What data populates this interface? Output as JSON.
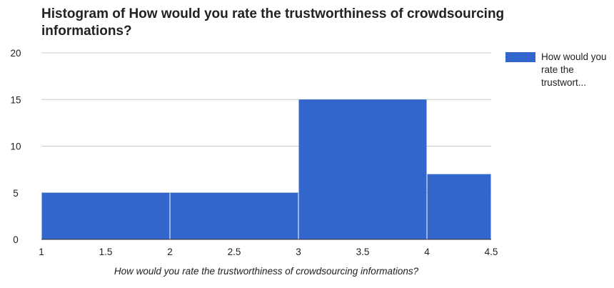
{
  "chart_data": {
    "type": "bar",
    "title": "Histogram of How would you rate the trustworthiness of crowdsourcing informations?",
    "xlabel": "How would you rate the trustworthiness of crowdsourcing informations?",
    "ylabel": "",
    "legend": {
      "label": "How would you rate the trustwort...",
      "position": "right"
    },
    "bins": [
      {
        "x0": 1,
        "x1": 2,
        "count": 5
      },
      {
        "x0": 2,
        "x1": 3,
        "count": 5
      },
      {
        "x0": 3,
        "x1": 4,
        "count": 15
      },
      {
        "x0": 4,
        "x1": 4.5,
        "count": 7
      }
    ],
    "xlim": [
      1,
      4.5
    ],
    "ylim": [
      0,
      20
    ],
    "x_ticks": [
      "1",
      "1.5",
      "2",
      "2.5",
      "3",
      "3.5",
      "4",
      "4.5"
    ],
    "y_ticks": [
      "0",
      "5",
      "10",
      "15",
      "20"
    ],
    "grid": true,
    "bar_color": "#3366cc",
    "grid_color": "#cccccc",
    "baseline_color": "#333333"
  }
}
